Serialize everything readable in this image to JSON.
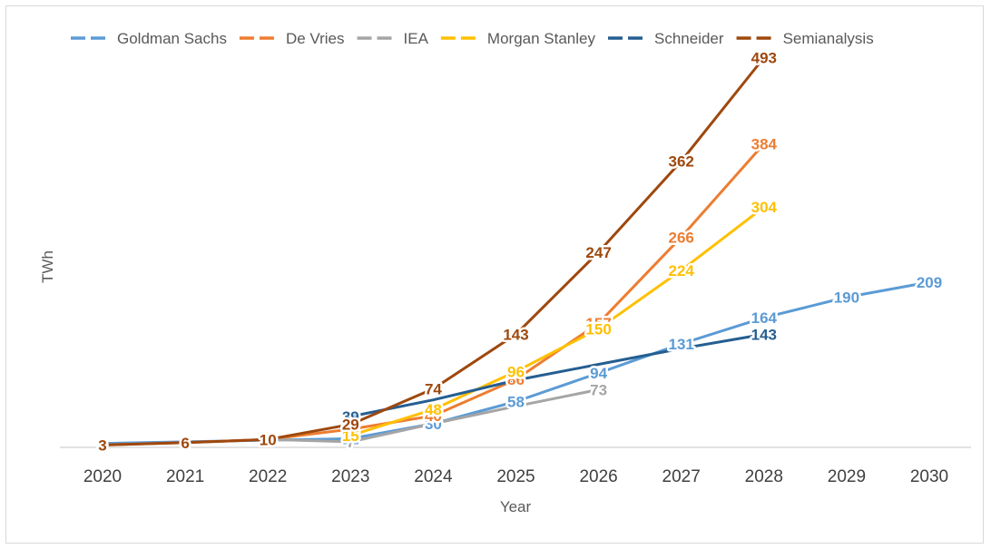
{
  "chart_data": {
    "type": "line",
    "title": "",
    "xlabel": "Year",
    "ylabel": "TWh",
    "legend_position": "top",
    "grid": false,
    "ylim": [
      0,
      520
    ],
    "x": [
      "2020",
      "2021",
      "2022",
      "2023",
      "2024",
      "2025",
      "2026",
      "2027",
      "2028",
      "2029",
      "2030"
    ],
    "series": [
      {
        "name": "Goldman Sachs",
        "color": "#5B9BD5",
        "points": [
          [
            "2020",
            5
          ],
          [
            "2023",
            11
          ],
          [
            "2024",
            30
          ],
          [
            "2025",
            58
          ],
          [
            "2026",
            94
          ],
          [
            "2027",
            131
          ],
          [
            "2028",
            164
          ],
          [
            "2029",
            190
          ],
          [
            "2030",
            209
          ]
        ],
        "labels": [
          "5",
          "11",
          "30",
          "58",
          "94",
          "131",
          "164",
          "190",
          "209"
        ]
      },
      {
        "name": "De Vries",
        "color": "#ED7D31",
        "points": [
          [
            "2020",
            3
          ],
          [
            "2021",
            6
          ],
          [
            "2022",
            10
          ],
          [
            "2023",
            23
          ],
          [
            "2024",
            40
          ],
          [
            "2025",
            86
          ],
          [
            "2026",
            157
          ],
          [
            "2027",
            266
          ],
          [
            "2028",
            384
          ]
        ],
        "labels": [
          "3",
          "6",
          "10",
          "23",
          "40",
          "86",
          "157",
          "266",
          "384"
        ]
      },
      {
        "name": "IEA",
        "color": "#A5A5A5",
        "points": [
          [
            "2022",
            10
          ],
          [
            "2023",
            7
          ],
          [
            "2024",
            30
          ],
          [
            "2025",
            52
          ],
          [
            "2026",
            73
          ]
        ],
        "labels": [
          "",
          "7",
          "",
          "",
          "73"
        ]
      },
      {
        "name": "Morgan Stanley",
        "color": "#FFC000",
        "points": [
          [
            "2023",
            15
          ],
          [
            "2024",
            48
          ],
          [
            "2025",
            96
          ],
          [
            "2026",
            150
          ],
          [
            "2027",
            224
          ],
          [
            "2028",
            304
          ]
        ],
        "labels": [
          "15",
          "48",
          "96",
          "150",
          "224",
          "304"
        ]
      },
      {
        "name": "Schneider",
        "color": "#255E91",
        "points": [
          [
            "2023",
            39
          ],
          [
            "2024",
            60
          ],
          [
            "2025",
            85
          ],
          [
            "2026",
            105
          ],
          [
            "2027",
            125
          ],
          [
            "2028",
            143
          ]
        ],
        "labels": [
          "39",
          "",
          "",
          "",
          "",
          "143"
        ]
      },
      {
        "name": "Semianalysis",
        "color": "#9E480E",
        "points": [
          [
            "2020",
            3
          ],
          [
            "2021",
            6
          ],
          [
            "2022",
            10
          ],
          [
            "2023",
            29
          ],
          [
            "2024",
            74
          ],
          [
            "2025",
            143
          ],
          [
            "2026",
            247
          ],
          [
            "2027",
            362
          ],
          [
            "2028",
            493
          ]
        ],
        "labels": [
          "3",
          "6",
          "10",
          "29",
          "74",
          "143",
          "247",
          "362",
          "493"
        ]
      }
    ]
  }
}
